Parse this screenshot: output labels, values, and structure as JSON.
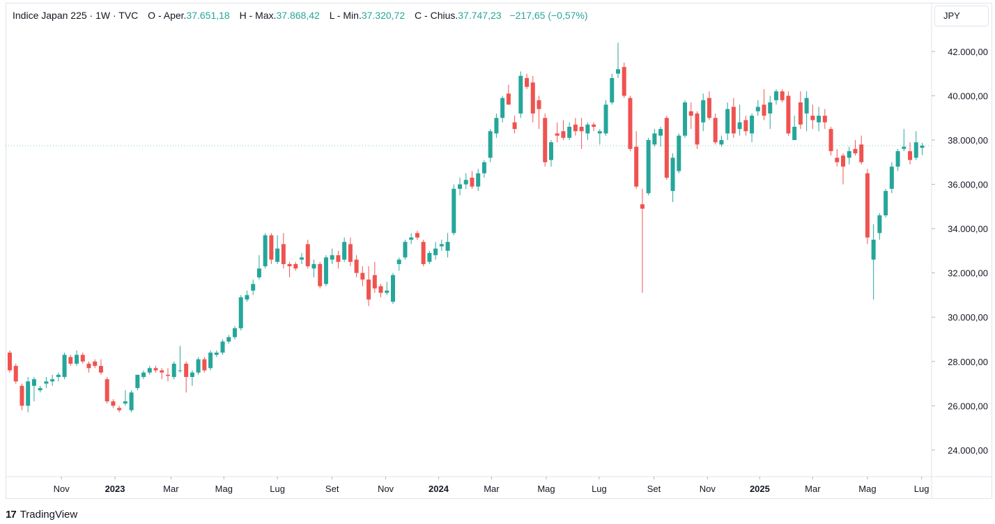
{
  "legend": {
    "symbol": "Indice Japan 225 · 1W · TVC",
    "open_label": "O - Aper.",
    "open": "37.651,18",
    "high_label": "H - Max.",
    "high": "37.868,42",
    "low_label": "L - Min.",
    "low": "37.320,72",
    "close_label": "C - Chius.",
    "close": "37.747,23",
    "change": "−217,65 (−0,57%)"
  },
  "currency": "JPY",
  "brand": "TradingView",
  "colors": {
    "up": "#26a69a",
    "down": "#ef5350",
    "grid": "#e0e3eb",
    "text": "#131722"
  },
  "chart_data": {
    "type": "candlestick",
    "title": "Indice Japan 225",
    "interval": "1W",
    "y_axis": {
      "min": 22800,
      "max": 44200,
      "ticks": [
        24000,
        26000,
        28000,
        30000,
        32000,
        34000,
        36000,
        38000,
        40000,
        42000
      ],
      "tick_labels": [
        "24.000,00",
        "26.000,00",
        "28.000,00",
        "30.000,00",
        "32.000,00",
        "34.000,00",
        "36.000,00",
        "38.000,00",
        "40.000,00",
        "42.000,00"
      ]
    },
    "x_axis": {
      "labels": [
        {
          "text": "Nov",
          "index": 8.5,
          "bold": false
        },
        {
          "text": "2023",
          "index": 17.3,
          "bold": true
        },
        {
          "text": "Mar",
          "index": 26.5,
          "bold": false
        },
        {
          "text": "Mag",
          "index": 35.2,
          "bold": false
        },
        {
          "text": "Lug",
          "index": 44.0,
          "bold": false
        },
        {
          "text": "Set",
          "index": 53.0,
          "bold": false
        },
        {
          "text": "Nov",
          "index": 61.8,
          "bold": false
        },
        {
          "text": "2024",
          "index": 70.5,
          "bold": true
        },
        {
          "text": "Mar",
          "index": 79.2,
          "bold": false
        },
        {
          "text": "Mag",
          "index": 88.2,
          "bold": false
        },
        {
          "text": "Lug",
          "index": 96.9,
          "bold": false
        },
        {
          "text": "Set",
          "index": 105.9,
          "bold": false
        },
        {
          "text": "Nov",
          "index": 114.7,
          "bold": false
        },
        {
          "text": "2025",
          "index": 123.3,
          "bold": true
        },
        {
          "text": "Mar",
          "index": 132.0,
          "bold": false
        },
        {
          "text": "Mag",
          "index": 141.0,
          "bold": false
        },
        {
          "text": "Lug",
          "index": 149.9,
          "bold": false
        }
      ]
    },
    "last_price": 37747.23,
    "candles": [
      {
        "o": 28400,
        "h": 28500,
        "l": 27500,
        "c": 27600
      },
      {
        "o": 27800,
        "h": 27900,
        "l": 27000,
        "c": 27100
      },
      {
        "o": 26900,
        "h": 27000,
        "l": 25800,
        "c": 26000
      },
      {
        "o": 26000,
        "h": 27300,
        "l": 25700,
        "c": 27100
      },
      {
        "o": 26900,
        "h": 27300,
        "l": 26200,
        "c": 27200
      },
      {
        "o": 26700,
        "h": 26900,
        "l": 26600,
        "c": 26800
      },
      {
        "o": 27000,
        "h": 27300,
        "l": 26800,
        "c": 27100
      },
      {
        "o": 27100,
        "h": 27400,
        "l": 26900,
        "c": 27200
      },
      {
        "o": 27300,
        "h": 27500,
        "l": 27100,
        "c": 27400
      },
      {
        "o": 27300,
        "h": 28400,
        "l": 27200,
        "c": 28300
      },
      {
        "o": 28200,
        "h": 28300,
        "l": 27800,
        "c": 27900
      },
      {
        "o": 27900,
        "h": 28500,
        "l": 27800,
        "c": 28300
      },
      {
        "o": 28300,
        "h": 28400,
        "l": 27900,
        "c": 28000
      },
      {
        "o": 27900,
        "h": 28000,
        "l": 27500,
        "c": 27700
      },
      {
        "o": 28000,
        "h": 28100,
        "l": 27700,
        "c": 27800
      },
      {
        "o": 27800,
        "h": 28100,
        "l": 27400,
        "c": 27500
      },
      {
        "o": 27200,
        "h": 27300,
        "l": 26100,
        "c": 26200
      },
      {
        "o": 26200,
        "h": 26300,
        "l": 25900,
        "c": 26000
      },
      {
        "o": 25900,
        "h": 26000,
        "l": 25700,
        "c": 25800
      },
      {
        "o": 26100,
        "h": 26700,
        "l": 26000,
        "c": 26200
      },
      {
        "o": 25800,
        "h": 26700,
        "l": 25700,
        "c": 26600
      },
      {
        "o": 26800,
        "h": 27400,
        "l": 26700,
        "c": 27400
      },
      {
        "o": 27300,
        "h": 27600,
        "l": 27200,
        "c": 27500
      },
      {
        "o": 27500,
        "h": 27800,
        "l": 27400,
        "c": 27700
      },
      {
        "o": 27700,
        "h": 27800,
        "l": 27500,
        "c": 27600
      },
      {
        "o": 27600,
        "h": 27700,
        "l": 27200,
        "c": 27500
      },
      {
        "o": 27400,
        "h": 27700,
        "l": 27100,
        "c": 27350
      },
      {
        "o": 27300,
        "h": 28000,
        "l": 27200,
        "c": 27900
      },
      {
        "o": 27600,
        "h": 28700,
        "l": 27500,
        "c": 27600
      },
      {
        "o": 27900,
        "h": 28000,
        "l": 26600,
        "c": 27300
      },
      {
        "o": 27300,
        "h": 27600,
        "l": 26900,
        "c": 27500
      },
      {
        "o": 27500,
        "h": 28200,
        "l": 27400,
        "c": 28100
      },
      {
        "o": 28100,
        "h": 28200,
        "l": 27500,
        "c": 27600
      },
      {
        "o": 27700,
        "h": 28500,
        "l": 27600,
        "c": 28400
      },
      {
        "o": 28300,
        "h": 28500,
        "l": 28200,
        "c": 28400
      },
      {
        "o": 28400,
        "h": 29000,
        "l": 28300,
        "c": 28900
      },
      {
        "o": 28900,
        "h": 29200,
        "l": 28800,
        "c": 29100
      },
      {
        "o": 29100,
        "h": 29600,
        "l": 29000,
        "c": 29500
      },
      {
        "o": 29500,
        "h": 31000,
        "l": 29400,
        "c": 30900
      },
      {
        "o": 30800,
        "h": 31200,
        "l": 30700,
        "c": 31000
      },
      {
        "o": 31200,
        "h": 31700,
        "l": 31000,
        "c": 31500
      },
      {
        "o": 31800,
        "h": 32800,
        "l": 31700,
        "c": 32200
      },
      {
        "o": 32300,
        "h": 33800,
        "l": 32200,
        "c": 33700
      },
      {
        "o": 33700,
        "h": 33800,
        "l": 32400,
        "c": 32600
      },
      {
        "o": 32500,
        "h": 33700,
        "l": 32400,
        "c": 33100
      },
      {
        "o": 33300,
        "h": 33800,
        "l": 32200,
        "c": 32400
      },
      {
        "o": 32400,
        "h": 32500,
        "l": 31800,
        "c": 32300
      },
      {
        "o": 32400,
        "h": 32500,
        "l": 32100,
        "c": 32200
      },
      {
        "o": 32600,
        "h": 32900,
        "l": 32400,
        "c": 32700
      },
      {
        "o": 33300,
        "h": 33500,
        "l": 32200,
        "c": 32300
      },
      {
        "o": 32200,
        "h": 32600,
        "l": 31800,
        "c": 32400
      },
      {
        "o": 32400,
        "h": 32500,
        "l": 31300,
        "c": 31400
      },
      {
        "o": 31500,
        "h": 32800,
        "l": 31400,
        "c": 32700
      },
      {
        "o": 32600,
        "h": 33100,
        "l": 32400,
        "c": 32800
      },
      {
        "o": 32800,
        "h": 33000,
        "l": 32200,
        "c": 32500
      },
      {
        "o": 32600,
        "h": 33600,
        "l": 32500,
        "c": 33400
      },
      {
        "o": 33300,
        "h": 33600,
        "l": 32300,
        "c": 32500
      },
      {
        "o": 32600,
        "h": 32800,
        "l": 31800,
        "c": 32000
      },
      {
        "o": 32000,
        "h": 32300,
        "l": 31400,
        "c": 31700
      },
      {
        "o": 31700,
        "h": 32300,
        "l": 30500,
        "c": 30800
      },
      {
        "o": 31900,
        "h": 32500,
        "l": 31100,
        "c": 31300
      },
      {
        "o": 31400,
        "h": 31500,
        "l": 30900,
        "c": 31100
      },
      {
        "o": 31100,
        "h": 31600,
        "l": 31000,
        "c": 31200
      },
      {
        "o": 30700,
        "h": 32000,
        "l": 30600,
        "c": 31900
      },
      {
        "o": 32400,
        "h": 32700,
        "l": 32100,
        "c": 32600
      },
      {
        "o": 32700,
        "h": 33500,
        "l": 32600,
        "c": 33400
      },
      {
        "o": 33500,
        "h": 33800,
        "l": 33300,
        "c": 33600
      },
      {
        "o": 33800,
        "h": 33900,
        "l": 33500,
        "c": 33600
      },
      {
        "o": 33400,
        "h": 33500,
        "l": 32300,
        "c": 32400
      },
      {
        "o": 32500,
        "h": 33000,
        "l": 32400,
        "c": 32900
      },
      {
        "o": 32800,
        "h": 33400,
        "l": 32600,
        "c": 33100
      },
      {
        "o": 33200,
        "h": 33500,
        "l": 33000,
        "c": 33300
      },
      {
        "o": 33000,
        "h": 33800,
        "l": 32700,
        "c": 33400
      },
      {
        "o": 33800,
        "h": 36000,
        "l": 33700,
        "c": 35800
      },
      {
        "o": 35800,
        "h": 36300,
        "l": 35500,
        "c": 36000
      },
      {
        "o": 36000,
        "h": 36500,
        "l": 35800,
        "c": 36200
      },
      {
        "o": 36300,
        "h": 36600,
        "l": 35800,
        "c": 35900
      },
      {
        "o": 35900,
        "h": 36700,
        "l": 35700,
        "c": 36500
      },
      {
        "o": 36500,
        "h": 37100,
        "l": 36300,
        "c": 37000
      },
      {
        "o": 37200,
        "h": 38500,
        "l": 37000,
        "c": 38400
      },
      {
        "o": 38300,
        "h": 39200,
        "l": 38100,
        "c": 39000
      },
      {
        "o": 39000,
        "h": 40000,
        "l": 38800,
        "c": 39900
      },
      {
        "o": 40100,
        "h": 40500,
        "l": 39600,
        "c": 39600
      },
      {
        "o": 38800,
        "h": 39100,
        "l": 38300,
        "c": 38500
      },
      {
        "o": 39200,
        "h": 41100,
        "l": 39000,
        "c": 40900
      },
      {
        "o": 40800,
        "h": 41000,
        "l": 40300,
        "c": 40400
      },
      {
        "o": 40600,
        "h": 40900,
        "l": 38800,
        "c": 39200
      },
      {
        "o": 39800,
        "h": 40000,
        "l": 38500,
        "c": 39400
      },
      {
        "o": 39000,
        "h": 39200,
        "l": 36800,
        "c": 37000
      },
      {
        "o": 37100,
        "h": 38000,
        "l": 36800,
        "c": 37900
      },
      {
        "o": 38300,
        "h": 38800,
        "l": 37900,
        "c": 38200
      },
      {
        "o": 38400,
        "h": 38900,
        "l": 38000,
        "c": 38100
      },
      {
        "o": 38100,
        "h": 38800,
        "l": 38000,
        "c": 38600
      },
      {
        "o": 38700,
        "h": 39000,
        "l": 38200,
        "c": 38400
      },
      {
        "o": 38600,
        "h": 39000,
        "l": 37600,
        "c": 38400
      },
      {
        "o": 38300,
        "h": 38800,
        "l": 38000,
        "c": 38700
      },
      {
        "o": 38700,
        "h": 38800,
        "l": 38400,
        "c": 38600
      },
      {
        "o": 38300,
        "h": 38500,
        "l": 37800,
        "c": 38400
      },
      {
        "o": 38300,
        "h": 39800,
        "l": 38200,
        "c": 39600
      },
      {
        "o": 39700,
        "h": 41000,
        "l": 39600,
        "c": 40800
      },
      {
        "o": 41000,
        "h": 42400,
        "l": 40800,
        "c": 41200
      },
      {
        "o": 41300,
        "h": 41500,
        "l": 39900,
        "c": 40000
      },
      {
        "o": 39900,
        "h": 40000,
        "l": 37500,
        "c": 37600
      },
      {
        "o": 37700,
        "h": 38400,
        "l": 35800,
        "c": 35900
      },
      {
        "o": 35100,
        "h": 35800,
        "l": 31100,
        "c": 34900
      },
      {
        "o": 35600,
        "h": 38100,
        "l": 35500,
        "c": 38000
      },
      {
        "o": 37800,
        "h": 38500,
        "l": 37700,
        "c": 38300
      },
      {
        "o": 38200,
        "h": 38600,
        "l": 37700,
        "c": 38500
      },
      {
        "o": 39000,
        "h": 39100,
        "l": 36200,
        "c": 36300
      },
      {
        "o": 35700,
        "h": 37400,
        "l": 35200,
        "c": 37200
      },
      {
        "o": 36600,
        "h": 38300,
        "l": 36500,
        "c": 38200
      },
      {
        "o": 38200,
        "h": 39800,
        "l": 38100,
        "c": 39700
      },
      {
        "o": 39300,
        "h": 39700,
        "l": 38500,
        "c": 39100
      },
      {
        "o": 39200,
        "h": 39300,
        "l": 37600,
        "c": 37800
      },
      {
        "o": 38800,
        "h": 40100,
        "l": 38400,
        "c": 39800
      },
      {
        "o": 39900,
        "h": 40200,
        "l": 38900,
        "c": 39000
      },
      {
        "o": 39000,
        "h": 39200,
        "l": 37800,
        "c": 37900
      },
      {
        "o": 37800,
        "h": 38200,
        "l": 37700,
        "c": 38000
      },
      {
        "o": 38300,
        "h": 39700,
        "l": 38000,
        "c": 39400
      },
      {
        "o": 39500,
        "h": 39900,
        "l": 38100,
        "c": 38300
      },
      {
        "o": 38500,
        "h": 39600,
        "l": 38200,
        "c": 38800
      },
      {
        "o": 38900,
        "h": 39100,
        "l": 38200,
        "c": 38400
      },
      {
        "o": 38300,
        "h": 39200,
        "l": 37900,
        "c": 39100
      },
      {
        "o": 39300,
        "h": 39800,
        "l": 39100,
        "c": 39500
      },
      {
        "o": 39600,
        "h": 40300,
        "l": 38900,
        "c": 39100
      },
      {
        "o": 39200,
        "h": 40000,
        "l": 38500,
        "c": 39700
      },
      {
        "o": 39800,
        "h": 40300,
        "l": 39600,
        "c": 40200
      },
      {
        "o": 40200,
        "h": 40300,
        "l": 39700,
        "c": 39800
      },
      {
        "o": 40000,
        "h": 40200,
        "l": 38200,
        "c": 38300
      },
      {
        "o": 38000,
        "h": 39100,
        "l": 38000,
        "c": 38600
      },
      {
        "o": 39700,
        "h": 40200,
        "l": 38500,
        "c": 38700
      },
      {
        "o": 39200,
        "h": 40200,
        "l": 38400,
        "c": 39900
      },
      {
        "o": 39100,
        "h": 39600,
        "l": 38500,
        "c": 38900
      },
      {
        "o": 38800,
        "h": 39500,
        "l": 38400,
        "c": 39100
      },
      {
        "o": 39100,
        "h": 39400,
        "l": 38500,
        "c": 38800
      },
      {
        "o": 38500,
        "h": 38600,
        "l": 37300,
        "c": 37500
      },
      {
        "o": 37200,
        "h": 37600,
        "l": 36800,
        "c": 37000
      },
      {
        "o": 37300,
        "h": 37400,
        "l": 36000,
        "c": 36800
      },
      {
        "o": 37200,
        "h": 37700,
        "l": 36900,
        "c": 37500
      },
      {
        "o": 37600,
        "h": 38000,
        "l": 37300,
        "c": 37400
      },
      {
        "o": 37800,
        "h": 38200,
        "l": 36900,
        "c": 37000
      },
      {
        "o": 36500,
        "h": 36700,
        "l": 33300,
        "c": 33600
      },
      {
        "o": 32600,
        "h": 34200,
        "l": 30800,
        "c": 33500
      },
      {
        "o": 33800,
        "h": 34700,
        "l": 33500,
        "c": 34600
      },
      {
        "o": 34600,
        "h": 35800,
        "l": 34500,
        "c": 35700
      },
      {
        "o": 35800,
        "h": 37000,
        "l": 35600,
        "c": 36800
      },
      {
        "o": 36800,
        "h": 37600,
        "l": 36600,
        "c": 37500
      },
      {
        "o": 37600,
        "h": 38500,
        "l": 37500,
        "c": 37700
      },
      {
        "o": 37500,
        "h": 37900,
        "l": 36900,
        "c": 37100
      },
      {
        "o": 37200,
        "h": 38400,
        "l": 37100,
        "c": 37900
      },
      {
        "o": 37650,
        "h": 37870,
        "l": 37320,
        "c": 37750
      }
    ]
  }
}
